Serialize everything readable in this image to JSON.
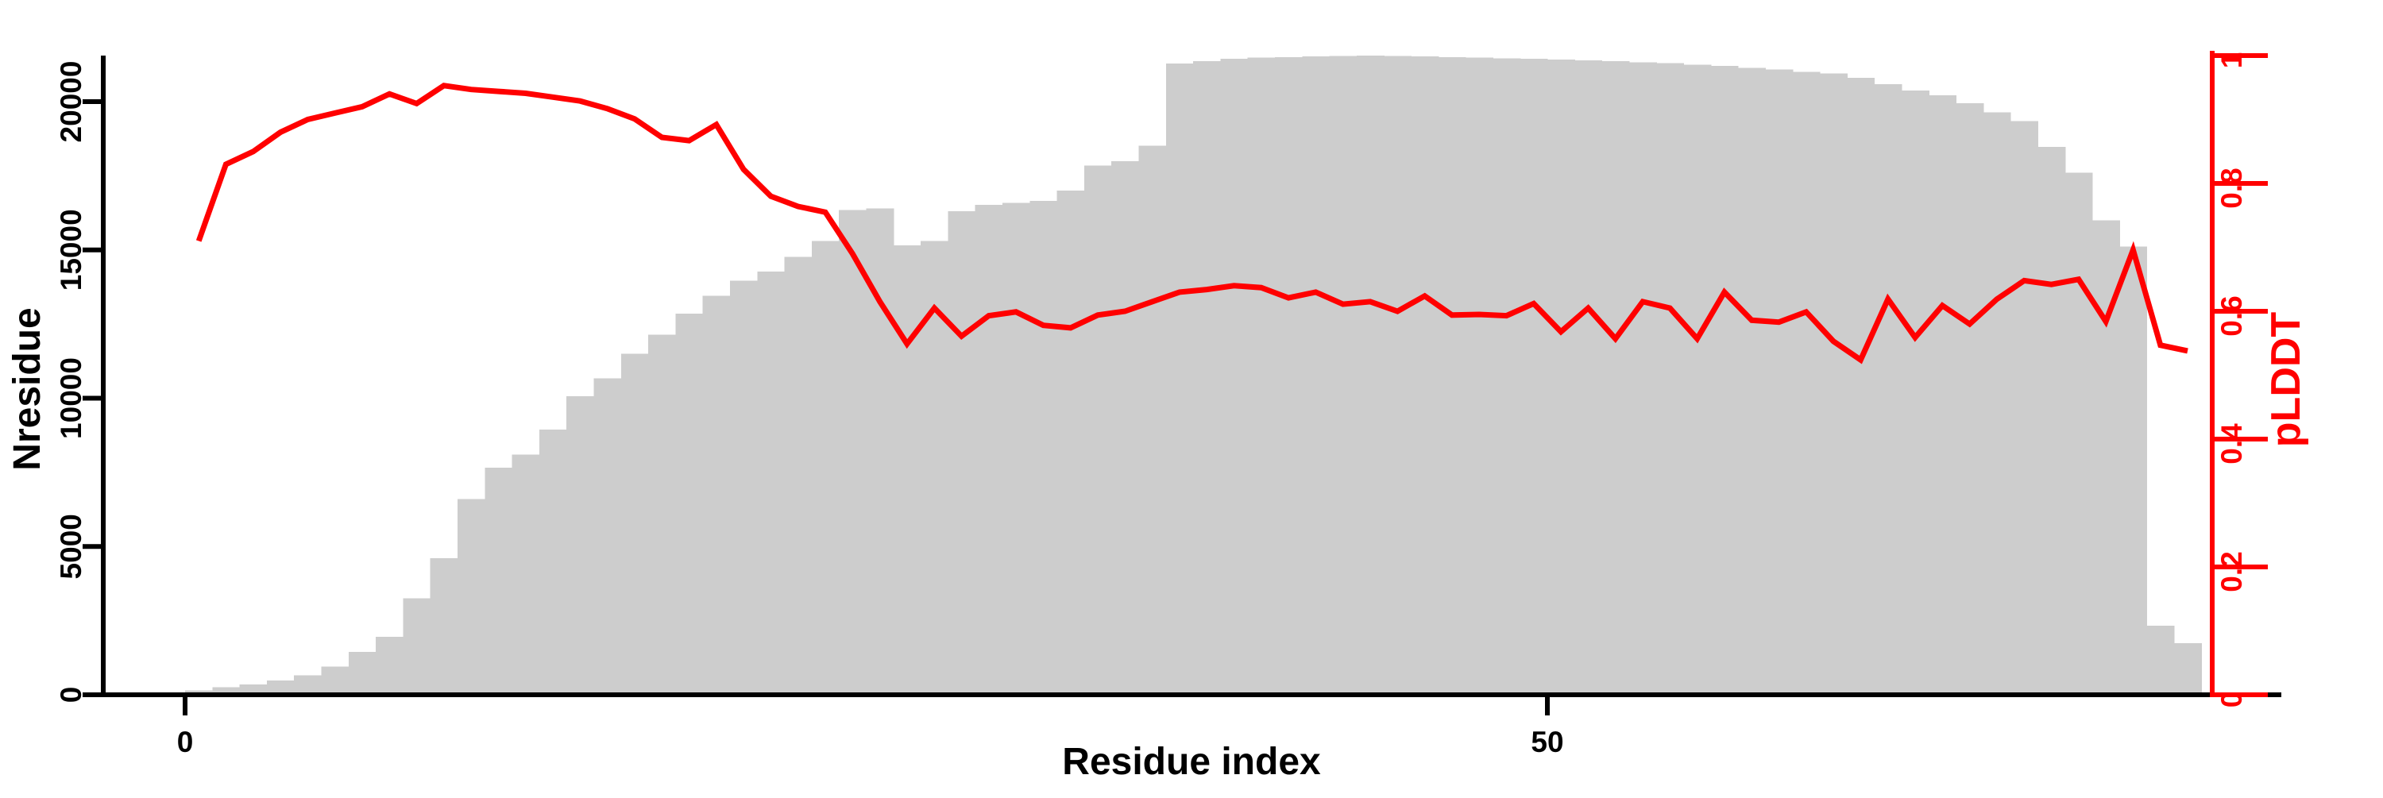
{
  "chart_data": {
    "type": "bar",
    "subtype": "dual-axis bar+line (per-residue MSA depth histogram with pLDDT trace)",
    "title": "",
    "xlabel": "Residue index",
    "ylabel_left": "Nresidue",
    "ylabel_right": "pLDDT",
    "x_tick_labels": [
      "0",
      "50"
    ],
    "x_tick_values": [
      0,
      50
    ],
    "left_tick_labels": [
      "0",
      "5000",
      "10000",
      "15000",
      "20000"
    ],
    "left_tick_values": [
      0,
      5000,
      10000,
      15000,
      20000
    ],
    "right_tick_labels": [
      "0",
      "0.2",
      "0.4",
      "0.6",
      "0.8",
      "1"
    ],
    "right_tick_values": [
      0,
      0.2,
      0.4,
      0.6,
      0.8,
      1
    ],
    "x_range": [
      0,
      74
    ],
    "left_range": [
      0,
      21550
    ],
    "right_range": [
      0,
      1
    ],
    "grid": "off",
    "legend": "none",
    "bar_color": "#cdcdcd",
    "line_color": "#ff0000",
    "axis_color": "#000000",
    "right_axis_color": "#ff0000",
    "x": [
      1,
      2,
      3,
      4,
      5,
      6,
      7,
      8,
      9,
      10,
      11,
      12,
      13,
      14,
      15,
      16,
      17,
      18,
      19,
      20,
      21,
      22,
      23,
      24,
      25,
      26,
      27,
      28,
      29,
      30,
      31,
      32,
      33,
      34,
      35,
      36,
      37,
      38,
      39,
      40,
      41,
      42,
      43,
      44,
      45,
      46,
      47,
      48,
      49,
      50,
      51,
      52,
      53,
      54,
      55,
      56,
      57,
      58,
      59,
      60,
      61,
      62,
      63,
      64,
      65,
      66,
      67,
      68,
      69,
      70,
      71,
      72,
      73,
      74
    ],
    "series": [
      {
        "name": "Nresidue",
        "type": "bar",
        "axis": "left",
        "values": [
          150,
          250,
          350,
          480,
          650,
          950,
          1450,
          1950,
          3250,
          4600,
          6600,
          7660,
          8100,
          8940,
          10070,
          10670,
          11500,
          12140,
          12850,
          13450,
          13960,
          14270,
          14770,
          15300,
          16350,
          16400,
          15150,
          15300,
          16300,
          16520,
          16580,
          16650,
          17000,
          17850,
          17990,
          18520,
          21280,
          21370,
          21450,
          21480,
          21500,
          21520,
          21540,
          21550,
          21540,
          21520,
          21500,
          21480,
          21460,
          21440,
          21420,
          21390,
          21360,
          21330,
          21300,
          21250,
          21200,
          21140,
          21080,
          21010,
          20950,
          20800,
          20590,
          20370,
          20210,
          19940,
          19640,
          19350,
          18470,
          17600,
          16000,
          15120,
          2330,
          1740
        ]
      },
      {
        "name": "pLDDT",
        "type": "line",
        "axis": "right",
        "values": [
          0.71,
          0.83,
          0.85,
          0.88,
          0.9,
          0.91,
          0.92,
          0.94,
          0.925,
          0.953,
          0.947,
          0.944,
          0.941,
          0.935,
          0.929,
          0.917,
          0.901,
          0.872,
          0.867,
          0.892,
          0.822,
          0.78,
          0.764,
          0.755,
          0.69,
          0.615,
          0.549,
          0.605,
          0.561,
          0.593,
          0.599,
          0.578,
          0.574,
          0.594,
          0.6,
          0.615,
          0.63,
          0.634,
          0.64,
          0.637,
          0.621,
          0.63,
          0.611,
          0.615,
          0.6,
          0.624,
          0.594,
          0.595,
          0.593,
          0.612,
          0.568,
          0.605,
          0.557,
          0.615,
          0.605,
          0.557,
          0.63,
          0.586,
          0.583,
          0.599,
          0.553,
          0.524,
          0.619,
          0.559,
          0.609,
          0.58,
          0.619,
          0.648,
          0.642,
          0.65,
          0.584,
          0.696,
          0.547,
          0.538
        ]
      }
    ]
  }
}
